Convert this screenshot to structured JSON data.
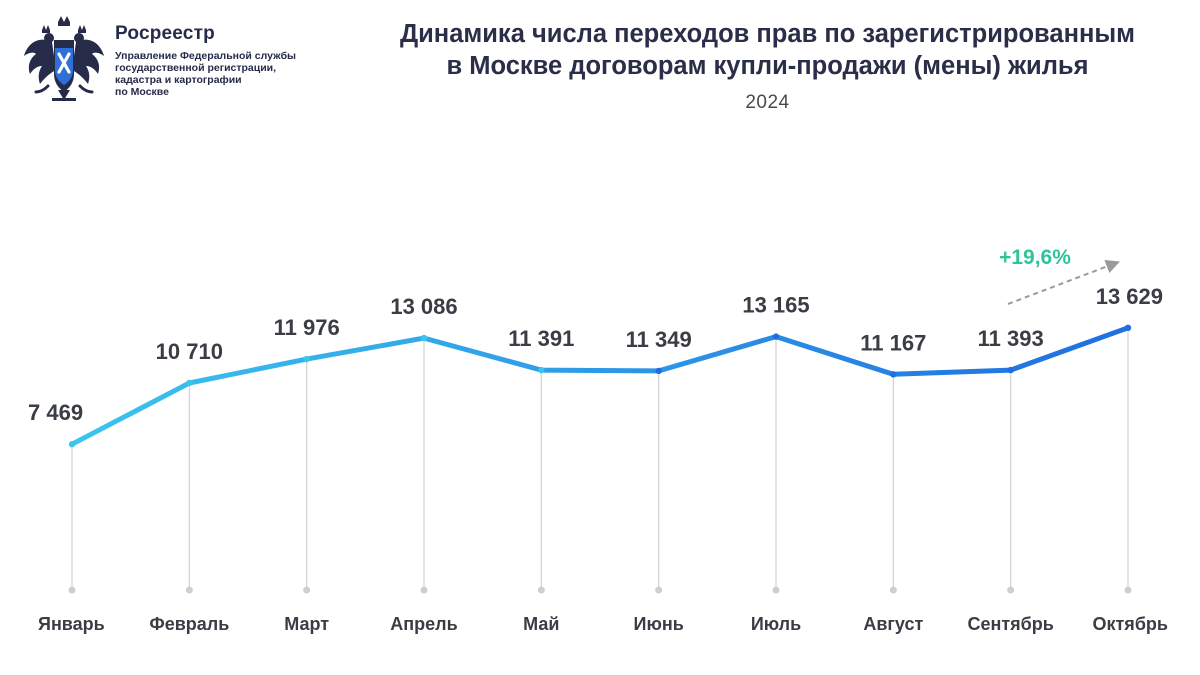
{
  "header": {
    "org_name": "Росреестр",
    "org_sub_1": "Управление Федеральной службы",
    "org_sub_2": "государственной регистрации,",
    "org_sub_3": "кадастра и картографии",
    "org_sub_4": "по Москве"
  },
  "colors": {
    "line_start": "#3cc4ee",
    "line_end": "#1f6fe0",
    "growth": "#2ec49a",
    "gridline": "#d6d6d6"
  },
  "chart_data": {
    "type": "line",
    "title_line_1": "Динамика числа переходов прав по зарегистрированным",
    "title_line_2": "в Москве договорам купли-продажи (мены) жилья",
    "subtitle": "2024",
    "categories": [
      "Январь",
      "Февраль",
      "Март",
      "Апрель",
      "Май",
      "Июнь",
      "Июль",
      "Август",
      "Сентябрь",
      "Октябрь"
    ],
    "values": [
      7469,
      10710,
      11976,
      13086,
      11391,
      11349,
      13165,
      11167,
      11393,
      13629
    ],
    "value_labels": [
      "7 469",
      "10 710",
      "11 976",
      "13 086",
      "11 391",
      "11 349",
      "13 165",
      "11 167",
      "11 393",
      "13 629"
    ],
    "ylim": [
      0,
      15500
    ],
    "xlabel": "",
    "ylabel": "",
    "grid": "vertical drop lines",
    "annotation": {
      "text": "+19,6%",
      "from_category": "Сентябрь",
      "to_category": "Октябрь"
    }
  }
}
